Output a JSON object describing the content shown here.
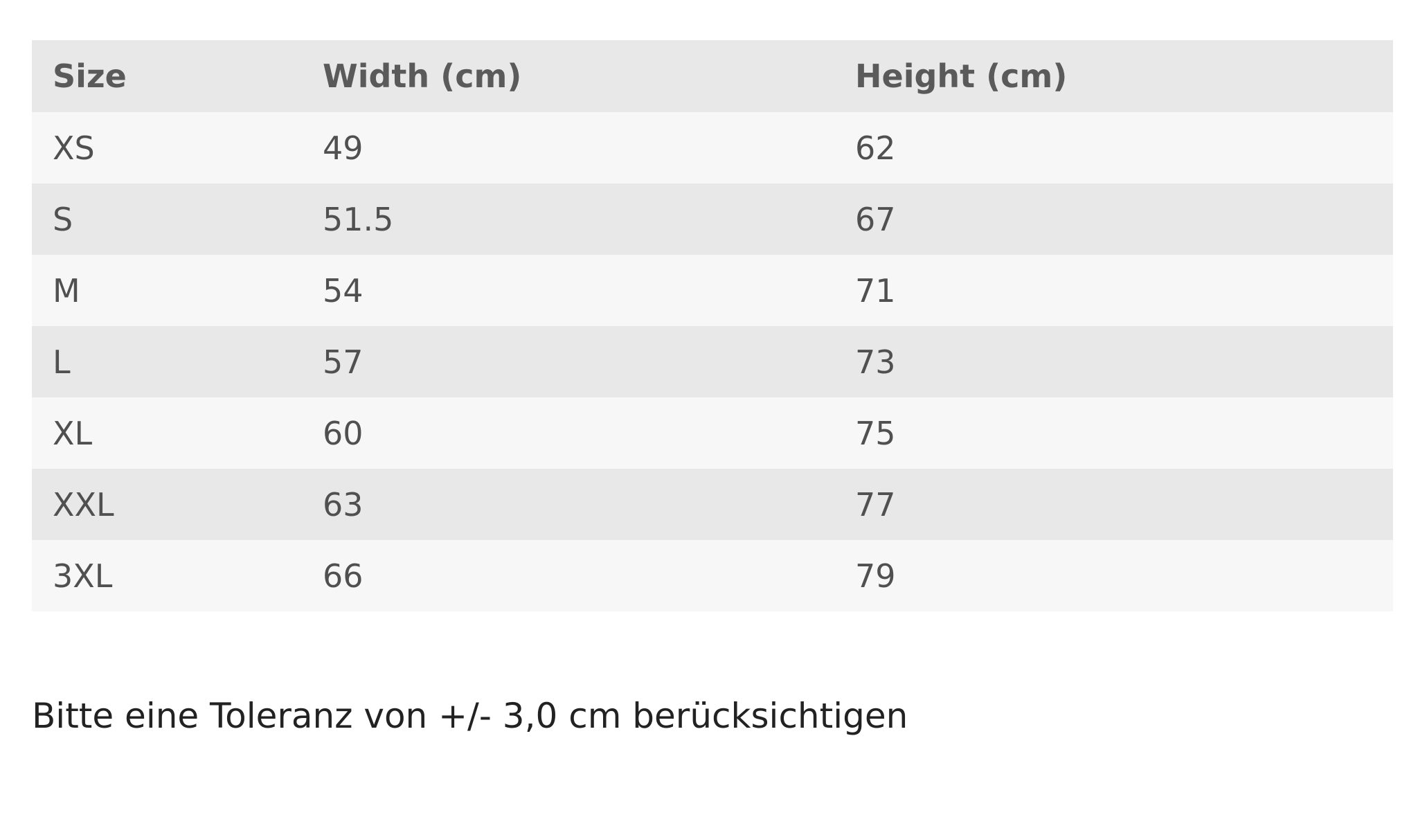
{
  "table": {
    "headers": [
      "Size",
      "Width (cm)",
      "Height (cm)"
    ],
    "rows": [
      [
        "XS",
        "49",
        "62"
      ],
      [
        "S",
        "51.5",
        "67"
      ],
      [
        "M",
        "54",
        "71"
      ],
      [
        "L",
        "57",
        "73"
      ],
      [
        "XL",
        "60",
        "75"
      ],
      [
        "XXL",
        "63",
        "77"
      ],
      [
        "3XL",
        "66",
        "79"
      ]
    ]
  },
  "note": "Bitte eine Toleranz von +/- 3,0 cm berücksichtigen"
}
